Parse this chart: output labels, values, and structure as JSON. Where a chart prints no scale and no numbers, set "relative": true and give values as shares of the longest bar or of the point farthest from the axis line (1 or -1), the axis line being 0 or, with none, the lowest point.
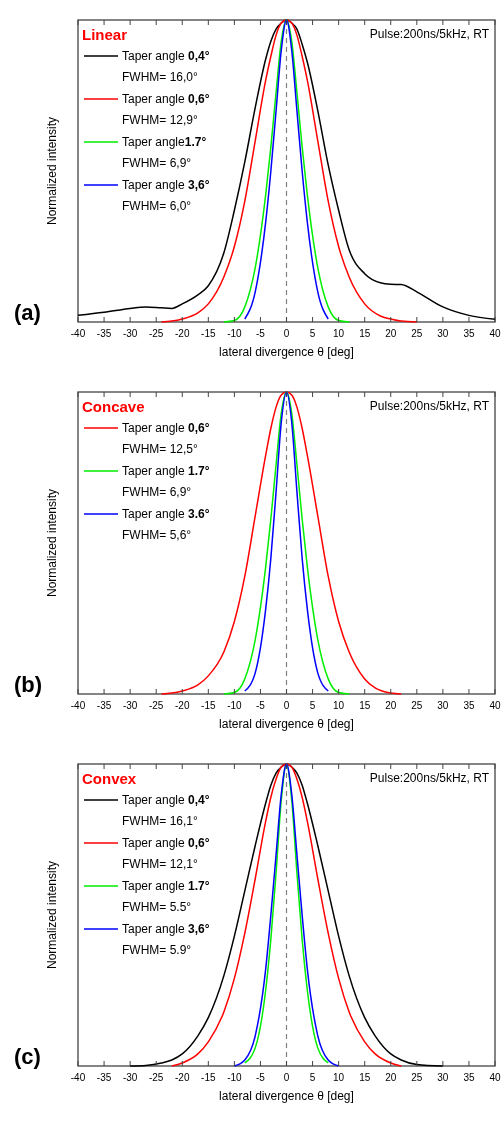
{
  "chart_data": [
    {
      "type": "line",
      "title": "Linear",
      "xlabel": "lateral divergence θ [deg]",
      "ylabel": "Normalized intensity",
      "relative": true,
      "xlim": [
        -40,
        40
      ],
      "xticks": [
        -40,
        -35,
        -30,
        -25,
        -20,
        -15,
        -10,
        -5,
        0,
        5,
        10,
        15,
        20,
        25,
        30,
        35,
        40
      ],
      "legend": "top left",
      "annotations": [
        "Pulse:200ns/5kHz, RT",
        "(a)"
      ],
      "ref_lines": [
        {
          "axis": "x",
          "value": 0,
          "color": "#808080",
          "line_style": "dashed"
        }
      ],
      "x": [
        -40,
        -35,
        -30,
        -27,
        -24,
        -22,
        -20,
        -17,
        -15,
        -12,
        -10,
        -8,
        -6,
        -4,
        -3,
        -2,
        -1,
        0,
        1,
        2,
        3,
        4,
        6,
        8,
        10,
        12,
        15,
        18,
        20,
        22,
        25,
        30,
        35,
        40
      ],
      "series": [
        {
          "name": "Taper angle 0,4°\nFWHM= 16,0°",
          "color": "#000000",
          "values": [
            0.022,
            0.032,
            0.045,
            0.05,
            0.047,
            0.045,
            0.06,
            0.09,
            0.12,
            0.23,
            0.37,
            0.53,
            0.71,
            0.87,
            0.93,
            0.97,
            0.99,
            1,
            0.99,
            0.97,
            0.92,
            0.86,
            0.7,
            0.52,
            0.37,
            0.24,
            0.16,
            0.13,
            0.125,
            0.124,
            0.1,
            0.05,
            0.022,
            0.009
          ]
        },
        {
          "name": "Taper angle 0,6°\nFWHM= 12,9°",
          "color": "#ff0000",
          "values": [
            null,
            null,
            null,
            null,
            0,
            0.003,
            0.01,
            0.03,
            0.06,
            0.15,
            0.25,
            0.4,
            0.6,
            0.8,
            0.88,
            0.95,
            0.99,
            1,
            0.99,
            0.95,
            0.88,
            0.8,
            0.6,
            0.4,
            0.25,
            0.15,
            0.06,
            0.02,
            0.01,
            0.003,
            0,
            null,
            null,
            null
          ]
        },
        {
          "name": "Taper angle1.7°\nFWHM= 6,9°",
          "color": "#00ee00",
          "values": [
            null,
            null,
            null,
            null,
            null,
            null,
            null,
            null,
            null,
            0,
            0.005,
            0.05,
            0.18,
            0.42,
            0.58,
            0.76,
            0.93,
            1,
            0.93,
            0.76,
            0.58,
            0.42,
            0.18,
            0.05,
            0.005,
            0,
            null,
            null,
            null,
            null,
            null,
            null,
            null,
            null
          ]
        },
        {
          "name": "Taper angle 3,6°\nFWHM= 6,0°",
          "color": "#0000ff",
          "values": [
            null,
            null,
            null,
            null,
            null,
            null,
            null,
            null,
            null,
            null,
            null,
            0.01,
            0.1,
            0.33,
            0.5,
            0.7,
            0.9,
            1,
            0.9,
            0.7,
            0.5,
            0.33,
            0.1,
            0.01,
            null,
            null,
            null,
            null,
            null,
            null,
            null,
            null,
            null,
            null
          ]
        }
      ]
    },
    {
      "type": "line",
      "title": "Concave",
      "xlabel": "lateral divergence θ [deg]",
      "ylabel": "Normalized intensity",
      "relative": true,
      "xlim": [
        -40,
        40
      ],
      "xticks": [
        -40,
        -35,
        -30,
        -25,
        -20,
        -15,
        -10,
        -5,
        0,
        5,
        10,
        15,
        20,
        25,
        30,
        35,
        40
      ],
      "legend": "top left",
      "annotations": [
        "Pulse:200ns/5kHz, RT",
        "(b)"
      ],
      "ref_lines": [
        {
          "axis": "x",
          "value": 0,
          "color": "#808080",
          "line_style": "dashed"
        }
      ],
      "x": [
        -24,
        -22,
        -20,
        -17,
        -15,
        -12,
        -10,
        -8,
        -6,
        -4,
        -3,
        -2,
        -1,
        0,
        1,
        2,
        3,
        4,
        6,
        8,
        10,
        12,
        15,
        17,
        20,
        22
      ],
      "series": [
        {
          "name": "Taper angle 0,6°\nFWHM= 12,5°",
          "color": "#ff0000",
          "values": [
            0,
            0.003,
            0.01,
            0.03,
            0.06,
            0.14,
            0.24,
            0.39,
            0.59,
            0.79,
            0.88,
            0.95,
            0.99,
            1,
            0.99,
            0.95,
            0.88,
            0.79,
            0.59,
            0.39,
            0.24,
            0.14,
            0.05,
            0.02,
            0.003,
            0
          ]
        },
        {
          "name": "Taper angle 1.7°\nFWHM= 6,9°",
          "color": "#00ee00",
          "values": [
            null,
            null,
            null,
            null,
            null,
            0,
            0.005,
            0.05,
            0.18,
            0.42,
            0.58,
            0.76,
            0.93,
            1,
            0.93,
            0.76,
            0.58,
            0.42,
            0.18,
            0.05,
            0.005,
            0,
            null,
            null,
            null,
            null
          ]
        },
        {
          "name": "Taper angle 3.6°\nFWHM= 5,6°",
          "color": "#0000ff",
          "values": [
            null,
            null,
            null,
            null,
            null,
            null,
            null,
            0.01,
            0.07,
            0.28,
            0.45,
            0.67,
            0.9,
            1,
            0.9,
            0.67,
            0.45,
            0.28,
            0.07,
            0.01,
            null,
            null,
            null,
            null,
            null,
            null
          ]
        }
      ]
    },
    {
      "type": "line",
      "title": "Convex",
      "xlabel": "lateral divergence θ [deg]",
      "ylabel": "Normalized intensity",
      "relative": true,
      "xlim": [
        -40,
        40
      ],
      "xticks": [
        -40,
        -35,
        -30,
        -25,
        -20,
        -15,
        -10,
        -5,
        0,
        5,
        10,
        15,
        20,
        25,
        30,
        35,
        40
      ],
      "legend": "top left",
      "annotations": [
        "Pulse:200ns/5kHz, RT",
        "(c)"
      ],
      "ref_lines": [
        {
          "axis": "x",
          "value": 0,
          "color": "#808080",
          "line_style": "dashed"
        }
      ],
      "x": [
        -30,
        -27,
        -24,
        -22,
        -20,
        -17,
        -15,
        -12,
        -10,
        -8,
        -6,
        -4,
        -3,
        -2,
        -1,
        0,
        1,
        2,
        3,
        4,
        6,
        8,
        10,
        12,
        15,
        17,
        20,
        22,
        25,
        30
      ],
      "series": [
        {
          "name": "Taper angle 0,4°\nFWHM= 16,1°",
          "color": "#000000",
          "values": [
            0,
            0.002,
            0.01,
            0.02,
            0.04,
            0.1,
            0.16,
            0.3,
            0.43,
            0.58,
            0.73,
            0.87,
            0.93,
            0.97,
            0.99,
            1,
            0.99,
            0.97,
            0.93,
            0.87,
            0.73,
            0.58,
            0.43,
            0.3,
            0.16,
            0.1,
            0.04,
            0.02,
            0.005,
            0
          ]
        },
        {
          "name": "Taper angle 0,6°\nFWHM= 12,1°",
          "color": "#ff0000",
          "values": [
            null,
            null,
            null,
            0,
            0.01,
            0.04,
            0.08,
            0.18,
            0.29,
            0.44,
            0.62,
            0.81,
            0.89,
            0.95,
            0.99,
            1,
            0.99,
            0.95,
            0.89,
            0.81,
            0.62,
            0.44,
            0.29,
            0.18,
            0.08,
            0.04,
            0.01,
            0,
            null,
            null
          ]
        },
        {
          "name": "Taper angle 1.7°\nFWHM= 5.5°",
          "color": "#00ee00",
          "values": [
            null,
            null,
            null,
            null,
            null,
            null,
            null,
            null,
            null,
            0.01,
            0.06,
            0.25,
            0.42,
            0.64,
            0.88,
            1,
            0.88,
            0.64,
            0.42,
            0.25,
            0.06,
            0.01,
            null,
            null,
            null,
            null,
            null,
            null,
            null,
            null
          ]
        },
        {
          "name": "Taper angle 3,6°\nFWHM= 5.9°",
          "color": "#0000ff",
          "values": [
            null,
            null,
            null,
            null,
            null,
            null,
            null,
            null,
            0,
            0.02,
            0.1,
            0.32,
            0.5,
            0.7,
            0.9,
            1,
            0.9,
            0.7,
            0.5,
            0.32,
            0.1,
            0.02,
            0,
            null,
            null,
            null,
            null,
            null,
            null,
            null
          ]
        }
      ]
    }
  ]
}
